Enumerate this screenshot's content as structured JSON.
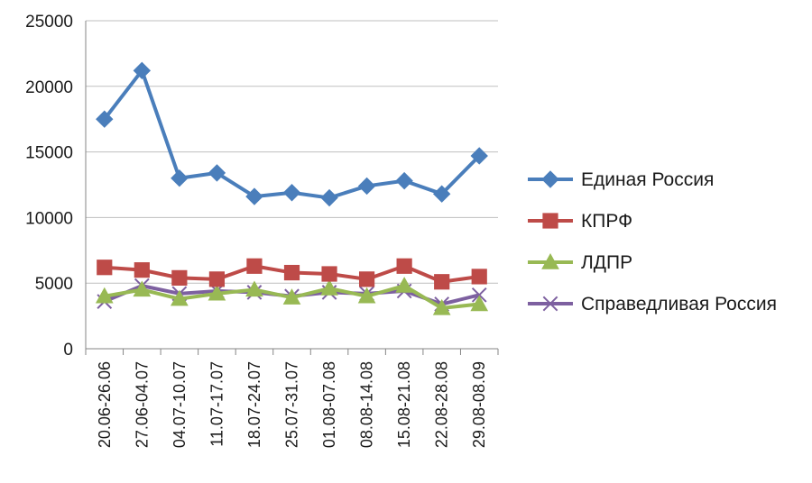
{
  "chart_data": {
    "type": "line",
    "categories": [
      "20.06-26.06",
      "27.06-04.07",
      "04.07-10.07",
      "11.07-17.07",
      "18.07-24.07",
      "25.07-31.07",
      "01.08-07.08",
      "08.08-14.08",
      "15.08-21.08",
      "22.08-28.08",
      "29.08-08.09"
    ],
    "ylim": [
      0,
      25000
    ],
    "yticks": [
      "0",
      "5000",
      "10000",
      "15000",
      "20000",
      "25000"
    ],
    "grid": true,
    "legend_position": "right",
    "series": [
      {
        "name": "Единая Россия",
        "color": "#4a7ebb",
        "marker": "diamond",
        "values": [
          17500,
          21200,
          13000,
          13400,
          11600,
          11900,
          11500,
          12400,
          12800,
          11800,
          14700
        ]
      },
      {
        "name": "КПРФ",
        "color": "#be4b48",
        "marker": "square",
        "values": [
          6200,
          6000,
          5400,
          5300,
          6300,
          5800,
          5700,
          5300,
          6300,
          5100,
          5500
        ]
      },
      {
        "name": "ЛДПР",
        "color": "#98b954",
        "marker": "triangle",
        "values": [
          4000,
          4500,
          3800,
          4200,
          4500,
          3900,
          4600,
          4000,
          4800,
          3100,
          3400
        ]
      },
      {
        "name": "Справедливая Россия",
        "color": "#7d60a0",
        "marker": "x",
        "values": [
          3600,
          4800,
          4200,
          4400,
          4300,
          4000,
          4300,
          4200,
          4400,
          3400,
          4100
        ]
      }
    ]
  }
}
